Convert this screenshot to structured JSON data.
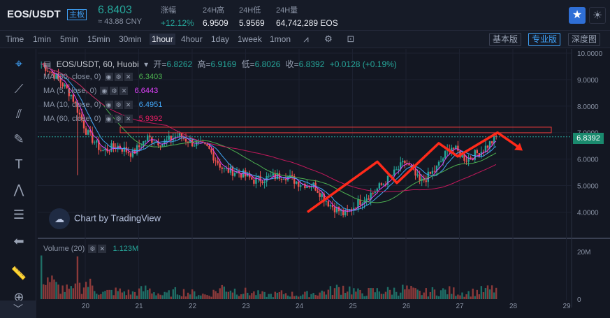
{
  "ticker": {
    "pair": "EOS/USDT",
    "badge": "主板",
    "price": "6.8403",
    "cny": "≈ 43.88 CNY",
    "change_label": "涨幅",
    "change_value": "+12.12%",
    "high_label": "24H高",
    "high_value": "6.9509",
    "low_label": "24H低",
    "low_value": "5.9569",
    "vol_label": "24H量",
    "vol_value": "64,742,289 EOS",
    "colors": {
      "up": "#26a69a",
      "down": "#ef5350",
      "accent": "#3fa0f5"
    }
  },
  "toolbar": {
    "timeframes": [
      "Time",
      "1min",
      "5min",
      "15min",
      "30min",
      "1hour",
      "4hour",
      "1day",
      "1week",
      "1mon"
    ],
    "active_timeframe": "1hour",
    "views": [
      "基本版",
      "专业版",
      "深度图"
    ],
    "active_view": "专业版",
    "icons": [
      "indicator-icon",
      "settings-icon",
      "screenshot-icon"
    ]
  },
  "left_tools": [
    "crosshair-icon",
    "trendline-icon",
    "pitchfork-icon",
    "brush-icon",
    "text-icon",
    "pattern-icon",
    "fib-icon",
    "back-arrow-icon",
    "ruler-icon",
    "zoom-icon"
  ],
  "legend": {
    "symbol": "EOS/USDT, 60, Huobi",
    "open_label": "开=",
    "open": "6.8262",
    "high_label": "高=",
    "high": "6.9169",
    "low_label": "低=",
    "low": "6.8026",
    "close_label": "收=",
    "close": "6.8392",
    "change": "+0.0128 (+0.19%)"
  },
  "ma": [
    {
      "label": "MA (30, close, 0)",
      "value": "6.3403",
      "color": "#4caf50"
    },
    {
      "label": "MA (5, close, 0)",
      "value": "6.6443",
      "color": "#e040fb"
    },
    {
      "label": "MA (10, close, 0)",
      "value": "6.4951",
      "color": "#42a5f5"
    },
    {
      "label": "MA (60, close, 0)",
      "value": "5.9392",
      "color": "#c2185b"
    }
  ],
  "watermark": "Chart by TradingView",
  "volume": {
    "label": "Volume (20)",
    "value": "1.123M"
  },
  "price_tag": "6.8392",
  "chart_data": {
    "type": "candlestick",
    "price_axis": [
      "10.0000",
      "9.0000",
      "8.0000",
      "7.0000",
      "6.0000",
      "5.0000",
      "4.0000"
    ],
    "volume_axis": [
      "20M",
      "0"
    ],
    "x_labels": [
      "20",
      "21",
      "22",
      "23",
      "24",
      "25",
      "26",
      "27",
      "28",
      "29"
    ],
    "ylim": [
      3.3,
      10.0
    ],
    "close_path": [
      9.6,
      9.1,
      8.4,
      7.0,
      6.3,
      6.5,
      6.2,
      6.8,
      6.6,
      6.9,
      6.6,
      6.4,
      5.6,
      5.5,
      5.2,
      5.3,
      5.4,
      5.1,
      5.0,
      4.3,
      3.9,
      4.4,
      4.8,
      5.3,
      5.9,
      5.1,
      5.6,
      6.5,
      6.0,
      6.3,
      6.8
    ],
    "volume_path_M": [
      14,
      6,
      4,
      8,
      3,
      4,
      3,
      5,
      2,
      4,
      3,
      2,
      6,
      4,
      3,
      2,
      3,
      2,
      3,
      4,
      6,
      3,
      4,
      4,
      5,
      3,
      4,
      4,
      3,
      4,
      5
    ],
    "annotations": {
      "resistance_zone_price": 7.1,
      "arrow_path_price": [
        4.0,
        5.9,
        5.1,
        6.6,
        6.1,
        7.0,
        6.4
      ]
    }
  }
}
